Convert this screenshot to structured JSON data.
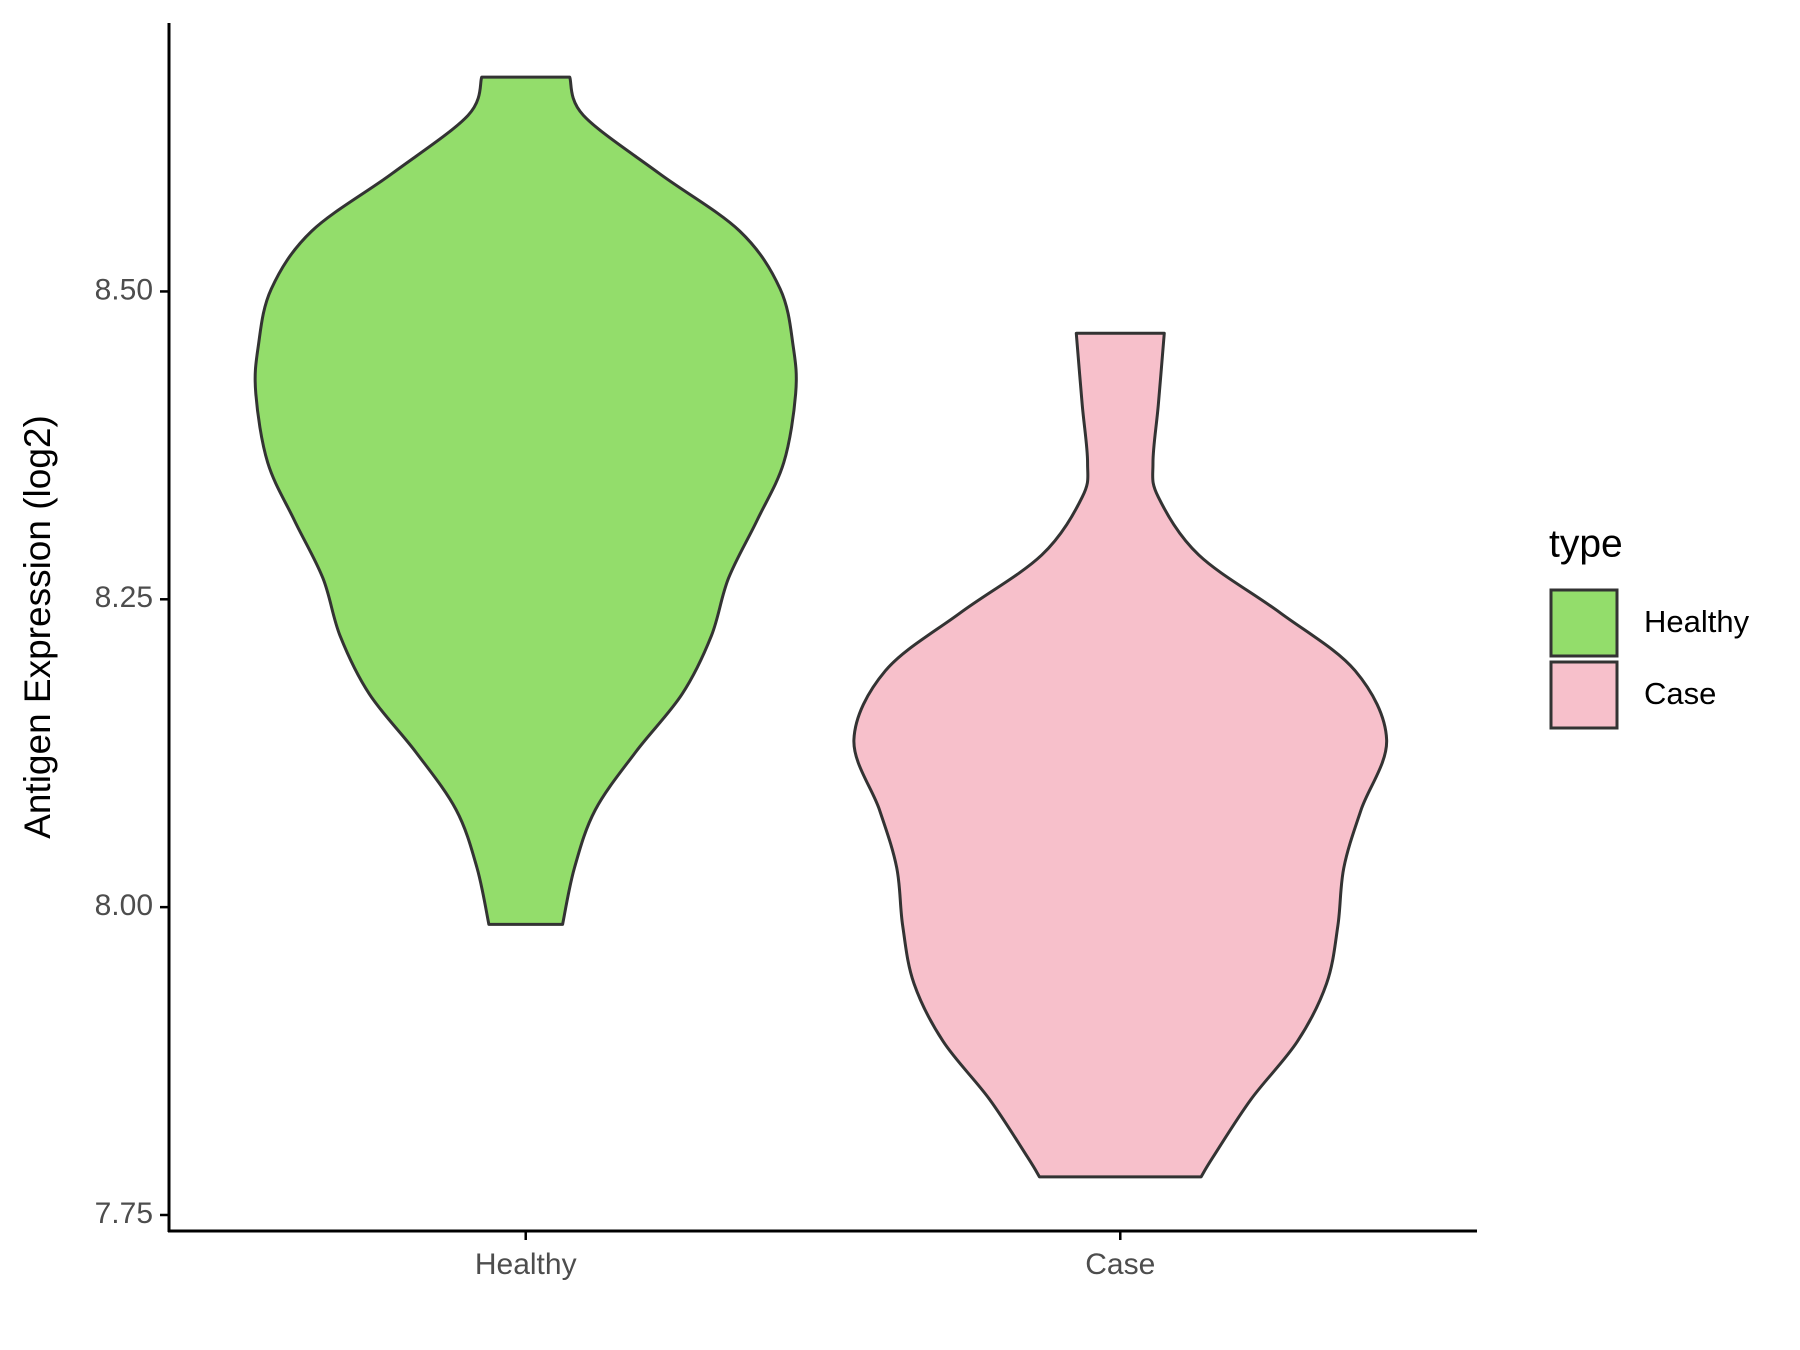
{
  "chart_data": {
    "type": "violin",
    "ylabel": "Antigen Expression (log2)",
    "categories": [
      "Healthy",
      "Case"
    ],
    "legend_title": "type",
    "ylim": [
      7.737,
      8.718
    ],
    "yticks": [
      {
        "value": 7.75,
        "label": "7.75"
      },
      {
        "value": 8.0,
        "label": "8.00"
      },
      {
        "value": 8.25,
        "label": "8.25"
      },
      {
        "value": 8.5,
        "label": "8.50"
      }
    ],
    "series": [
      {
        "name": "Healthy",
        "color": "#93dd6b",
        "y": [
          8.674,
          8.643,
          8.596,
          8.549,
          8.502,
          8.455,
          8.417,
          8.361,
          8.314,
          8.267,
          8.22,
          8.173,
          8.126,
          8.079,
          8.032,
          7.986
        ],
        "width": [
          0.074,
          0.097,
          0.224,
          0.36,
          0.428,
          0.45,
          0.454,
          0.434,
          0.389,
          0.341,
          0.312,
          0.263,
          0.185,
          0.117,
          0.082,
          0.062
        ]
      },
      {
        "name": "Case",
        "color": "#f7c0cb",
        "y": [
          8.466,
          8.408,
          8.361,
          8.333,
          8.286,
          8.239,
          8.192,
          8.136,
          8.079,
          8.032,
          7.985,
          7.938,
          7.891,
          7.844,
          7.797,
          7.781
        ],
        "width": [
          0.074,
          0.064,
          0.055,
          0.064,
          0.132,
          0.269,
          0.395,
          0.448,
          0.405,
          0.376,
          0.366,
          0.347,
          0.298,
          0.22,
          0.156,
          0.136
        ]
      }
    ]
  }
}
